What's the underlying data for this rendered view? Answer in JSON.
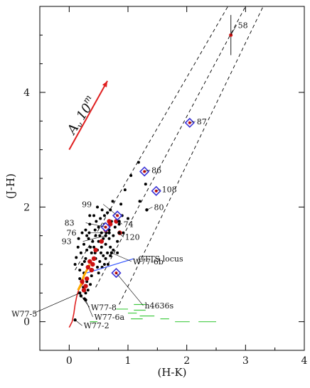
{
  "chart_data": {
    "type": "scatter",
    "xlabel": "(H-K)",
    "ylabel": "(J-H)",
    "xlim": [
      -0.5,
      4.0
    ],
    "ylim": [
      -0.5,
      5.5
    ],
    "xticks": [
      "0",
      "1",
      "2",
      "3",
      "4"
    ],
    "yticks": [
      "0",
      "2",
      "4"
    ],
    "xtick_values": [
      0,
      1,
      2,
      3,
      4
    ],
    "ytick_values": [
      0,
      2,
      4
    ],
    "grid": false,
    "extinction_vector": {
      "label": "A_V 10^m",
      "label_main": "A",
      "label_sub": "v",
      "label_value": "10",
      "label_sup": "m",
      "start": [
        0.0,
        3.0
      ],
      "end": [
        0.65,
        4.2
      ],
      "color": "#e02020"
    },
    "reddening_band_lines": [
      {
        "from": [
          0.1,
          0.9
        ],
        "to": [
          2.7,
          5.5
        ]
      },
      {
        "from": [
          0.45,
          0.6
        ],
        "to": [
          3.0,
          5.5
        ]
      },
      {
        "from": [
          0.85,
          0.3
        ],
        "to": [
          3.3,
          5.5
        ]
      }
    ],
    "main_sequence_curve": {
      "color": "#e02020",
      "points": [
        [
          0.0,
          -0.1
        ],
        [
          0.05,
          0.0
        ],
        [
          0.08,
          0.15
        ],
        [
          0.1,
          0.3
        ],
        [
          0.13,
          0.45
        ],
        [
          0.16,
          0.55
        ],
        [
          0.2,
          0.62
        ],
        [
          0.25,
          0.68
        ]
      ]
    },
    "giant_branch_curve": {
      "color": "#ffaa00",
      "points": [
        [
          0.15,
          0.55
        ],
        [
          0.2,
          0.65
        ],
        [
          0.25,
          0.8
        ],
        [
          0.3,
          0.9
        ],
        [
          0.35,
          1.0
        ]
      ]
    },
    "ctts_locus": {
      "label": "CTTS locus",
      "color": "#3355ff",
      "from": [
        0.3,
        0.85
      ],
      "to": [
        1.1,
        1.1
      ]
    },
    "field_stars": [
      [
        0.1,
        1.0
      ],
      [
        0.12,
        1.12
      ],
      [
        0.15,
        1.3
      ],
      [
        0.16,
        1.45
      ],
      [
        0.18,
        0.9
      ],
      [
        0.2,
        1.2
      ],
      [
        0.22,
        1.0
      ],
      [
        0.22,
        1.55
      ],
      [
        0.25,
        0.85
      ],
      [
        0.25,
        1.35
      ],
      [
        0.28,
        1.1
      ],
      [
        0.28,
        1.6
      ],
      [
        0.3,
        0.7
      ],
      [
        0.3,
        1.25
      ],
      [
        0.32,
        0.95
      ],
      [
        0.33,
        1.45
      ],
      [
        0.35,
        1.05
      ],
      [
        0.35,
        1.7
      ],
      [
        0.38,
        1.2
      ],
      [
        0.38,
        0.8
      ],
      [
        0.4,
        1.4
      ],
      [
        0.4,
        1.0
      ],
      [
        0.42,
        1.3
      ],
      [
        0.42,
        1.85
      ],
      [
        0.45,
        1.1
      ],
      [
        0.45,
        1.5
      ],
      [
        0.48,
        0.95
      ],
      [
        0.48,
        1.25
      ],
      [
        0.5,
        1.4
      ],
      [
        0.5,
        1.65
      ],
      [
        0.52,
        1.05
      ],
      [
        0.53,
        1.8
      ],
      [
        0.55,
        1.3
      ],
      [
        0.55,
        1.55
      ],
      [
        0.58,
        1.15
      ],
      [
        0.58,
        1.45
      ],
      [
        0.6,
        1.7
      ],
      [
        0.6,
        1.0
      ],
      [
        0.62,
        1.35
      ],
      [
        0.63,
        1.55
      ],
      [
        0.65,
        1.2
      ],
      [
        0.65,
        1.9
      ],
      [
        0.68,
        1.45
      ],
      [
        0.68,
        1.6
      ],
      [
        0.7,
        1.3
      ],
      [
        0.72,
        1.75
      ],
      [
        0.75,
        1.5
      ],
      [
        0.75,
        1.25
      ],
      [
        0.78,
        1.65
      ],
      [
        0.8,
        1.85
      ],
      [
        0.82,
        1.4
      ],
      [
        0.85,
        1.7
      ],
      [
        0.88,
        2.05
      ],
      [
        0.92,
        1.55
      ],
      [
        0.95,
        2.3
      ],
      [
        1.0,
        1.8
      ],
      [
        1.05,
        2.55
      ],
      [
        1.2,
        2.1
      ],
      [
        0.18,
        0.75
      ],
      [
        0.24,
        0.6
      ],
      [
        0.28,
        0.5
      ],
      [
        0.32,
        0.55
      ],
      [
        0.36,
        0.65
      ],
      [
        0.2,
        0.45
      ],
      [
        0.26,
        0.4
      ],
      [
        0.34,
        1.55
      ],
      [
        0.44,
        1.6
      ],
      [
        0.54,
        1.2
      ],
      [
        0.46,
        1.75
      ],
      [
        0.36,
        1.3
      ],
      [
        0.3,
        1.5
      ],
      [
        0.26,
        1.05
      ],
      [
        0.56,
        0.95
      ],
      [
        0.62,
        1.1
      ],
      [
        0.66,
        1.0
      ],
      [
        0.7,
        1.15
      ],
      [
        0.4,
        0.9
      ],
      [
        0.5,
        0.85
      ],
      [
        0.44,
        1.2
      ],
      [
        0.52,
        1.5
      ],
      [
        1.18,
        2.78
      ],
      [
        1.3,
        2.4
      ],
      [
        0.7,
        1.95
      ],
      [
        0.9,
        1.85
      ],
      [
        0.82,
        1.2
      ],
      [
        0.6,
        1.85
      ],
      [
        0.35,
        1.85
      ],
      [
        0.48,
        2.0
      ],
      [
        0.56,
        1.95
      ],
      [
        0.74,
        2.1
      ]
    ],
    "highlighted_points": [
      [
        0.28,
        0.62
      ],
      [
        0.3,
        0.75
      ],
      [
        0.32,
        0.95
      ],
      [
        0.35,
        1.05
      ],
      [
        0.4,
        1.0
      ],
      [
        0.42,
        1.1
      ],
      [
        0.38,
        0.9
      ],
      [
        0.45,
        1.25
      ],
      [
        0.55,
        1.4
      ],
      [
        0.62,
        1.6
      ],
      [
        0.7,
        1.7
      ],
      [
        0.68,
        1.75
      ],
      [
        0.8,
        1.75
      ],
      [
        0.86,
        1.55
      ],
      [
        0.25,
        0.55
      ],
      [
        0.22,
        0.7
      ]
    ],
    "labeled_sources": [
      {
        "label": "58",
        "x": 2.75,
        "y": 5.0,
        "err_low": 4.65,
        "err_high": 5.35,
        "marker": "star"
      },
      {
        "label": "87",
        "x": 2.05,
        "y": 3.47,
        "marker": "diamond"
      },
      {
        "label": "86",
        "x": 1.28,
        "y": 2.62,
        "marker": "diamond"
      },
      {
        "label": "108",
        "x": 1.48,
        "y": 2.28,
        "marker": "diamond"
      },
      {
        "label": "80",
        "x": 1.32,
        "y": 1.95,
        "marker": "dot"
      },
      {
        "label": "99",
        "x": 0.82,
        "y": 1.85,
        "marker": "diamond"
      },
      {
        "label": "83",
        "x": 0.62,
        "y": 1.65,
        "marker": "diamond"
      },
      {
        "label": "74",
        "x": 0.85,
        "y": 1.75,
        "marker": "dot"
      },
      {
        "label": "76",
        "x": 0.68,
        "y": 1.55,
        "marker": "dot"
      },
      {
        "label": "120",
        "x": 0.85,
        "y": 1.55,
        "marker": "dot"
      },
      {
        "label": "93",
        "x": 0.62,
        "y": 1.5,
        "marker": "dot"
      },
      {
        "label": "W77-6b",
        "x": 0.72,
        "y": 1.2,
        "marker": "dot"
      },
      {
        "label": "h4636s",
        "x": 0.8,
        "y": 0.85,
        "marker": "diamond"
      },
      {
        "label": "W77-8",
        "x": 0.2,
        "y": 0.45,
        "marker": "dot"
      },
      {
        "label": "W77-5",
        "x": 0.18,
        "y": 0.5,
        "marker": "dot"
      },
      {
        "label": "W77-6a",
        "x": 0.28,
        "y": 0.38,
        "marker": "dot"
      },
      {
        "label": "W77-2",
        "x": 0.1,
        "y": 0.03,
        "marker": "dot"
      }
    ],
    "green_segments": [
      [
        [
          0.35,
          0.0
        ],
        [
          0.48,
          0.0
        ]
      ],
      [
        [
          0.8,
          0.22
        ],
        [
          1.0,
          0.22
        ]
      ],
      [
        [
          1.0,
          0.15
        ],
        [
          1.15,
          0.15
        ]
      ],
      [
        [
          1.05,
          0.05
        ],
        [
          1.25,
          0.05
        ]
      ],
      [
        [
          1.1,
          0.3
        ],
        [
          1.3,
          0.3
        ]
      ],
      [
        [
          1.2,
          0.1
        ],
        [
          1.45,
          0.1
        ]
      ],
      [
        [
          1.55,
          0.05
        ],
        [
          1.7,
          0.05
        ]
      ],
      [
        [
          1.8,
          0.0
        ],
        [
          2.05,
          0.0
        ]
      ],
      [
        [
          2.2,
          0.0
        ],
        [
          2.5,
          0.0
        ]
      ],
      [
        [
          1.1,
          0.2
        ],
        [
          1.3,
          0.2
        ]
      ]
    ],
    "colors": {
      "axes": "#000000",
      "stars": "#000000",
      "highlight": "#cc1010",
      "diamond": "#3a33d6",
      "green": "#44cc44"
    }
  }
}
